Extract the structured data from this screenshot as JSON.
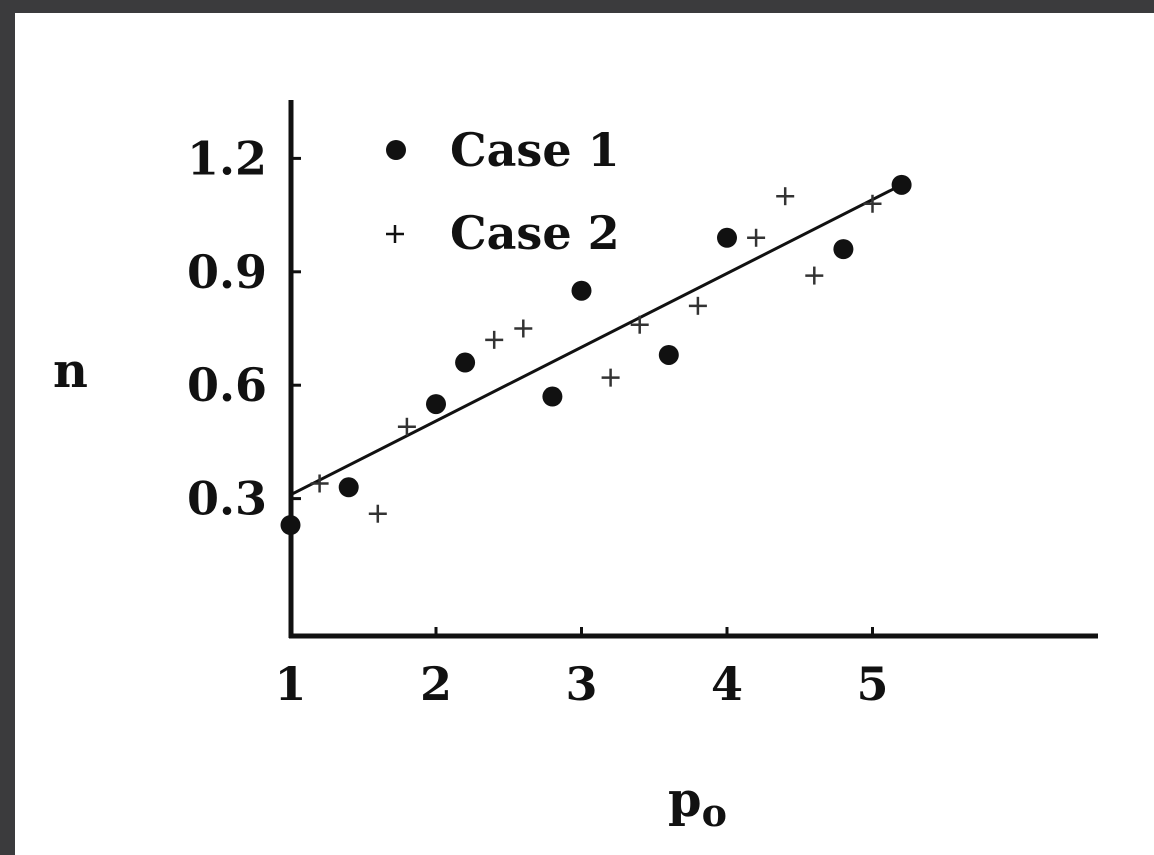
{
  "chart_data": {
    "type": "scatter",
    "xlabel": "p",
    "xlabel_subscript": "o",
    "ylabel": "n",
    "xlim": [
      0,
      5.5
    ],
    "ylim": [
      0,
      1.35
    ],
    "x_ticks": [
      1,
      2,
      3,
      4,
      5
    ],
    "y_ticks": [
      0.3,
      0.6,
      0.9,
      1.2
    ],
    "x_tick_labels": [
      "1",
      "2",
      "3",
      "4",
      "5"
    ],
    "y_tick_labels": [
      "0.3",
      "0.6",
      "0.9",
      "1.2"
    ],
    "legend_position": "top-left",
    "grid": false,
    "series": [
      {
        "name": "Case 1",
        "marker": "dot",
        "x": [
          1.0,
          1.4,
          2.0,
          2.2,
          2.8,
          3.0,
          3.6,
          4.0,
          4.8,
          5.2
        ],
        "y": [
          0.23,
          0.33,
          0.55,
          0.66,
          0.57,
          0.85,
          0.68,
          0.99,
          0.96,
          1.13
        ]
      },
      {
        "name": "Case 2",
        "marker": "plus",
        "x": [
          1.2,
          1.6,
          1.8,
          2.4,
          2.6,
          3.2,
          3.4,
          3.8,
          4.2,
          4.4,
          4.6,
          5.0
        ],
        "y": [
          0.34,
          0.26,
          0.49,
          0.72,
          0.75,
          0.62,
          0.76,
          0.81,
          0.99,
          1.1,
          0.89,
          1.08
        ]
      }
    ],
    "fit_line": {
      "x": [
        1.0,
        5.2
      ],
      "y": [
        0.31,
        1.13
      ]
    }
  }
}
